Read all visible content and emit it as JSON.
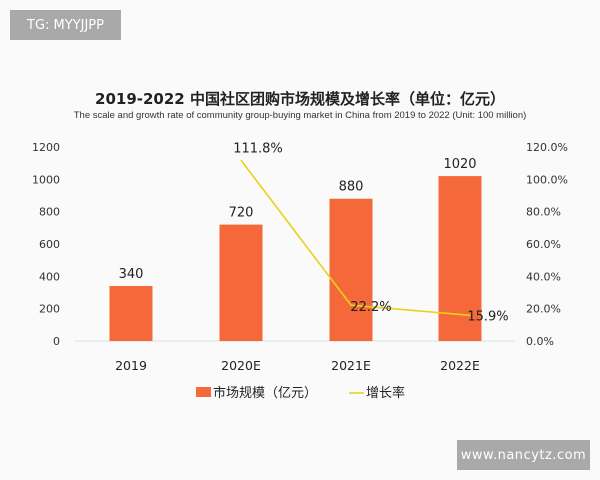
{
  "watermarks": {
    "top_left": "TG: MYYJJPP",
    "bottom_right": "www.nancytz.com"
  },
  "chart_data": {
    "type": "bar+line",
    "title": "2019-2022 中国社区团购市场规模及增长率（单位：亿元）",
    "subtitle": "The scale and growth rate of community group-buying market in China from 2019 to 2022 (Unit: 100 million)",
    "categories": [
      "2019",
      "2020E",
      "2021E",
      "2022E"
    ],
    "series": [
      {
        "name": "市场规模（亿元）",
        "type": "bar",
        "axis": "left",
        "color": "#f5683a",
        "values": [
          340,
          720,
          880,
          1020
        ],
        "labels": [
          "340",
          "720",
          "880",
          "1020"
        ]
      },
      {
        "name": "增长率",
        "type": "line",
        "axis": "right",
        "color": "#e8d21a",
        "values": [
          null,
          111.8,
          22.2,
          15.9
        ],
        "labels": [
          "",
          "111.8%",
          "22.2%",
          "15.9%"
        ]
      }
    ],
    "left_axis": {
      "ylim": [
        0,
        1200
      ],
      "ticks": [
        "0",
        "200",
        "400",
        "600",
        "800",
        "1000",
        "1200"
      ]
    },
    "right_axis": {
      "ylim": [
        0,
        120
      ],
      "ticks": [
        "0.0%",
        "20.0%",
        "40.0%",
        "60.0%",
        "80.0%",
        "100.0%",
        "120.0%"
      ]
    },
    "grid": false,
    "legend": "bottom"
  }
}
